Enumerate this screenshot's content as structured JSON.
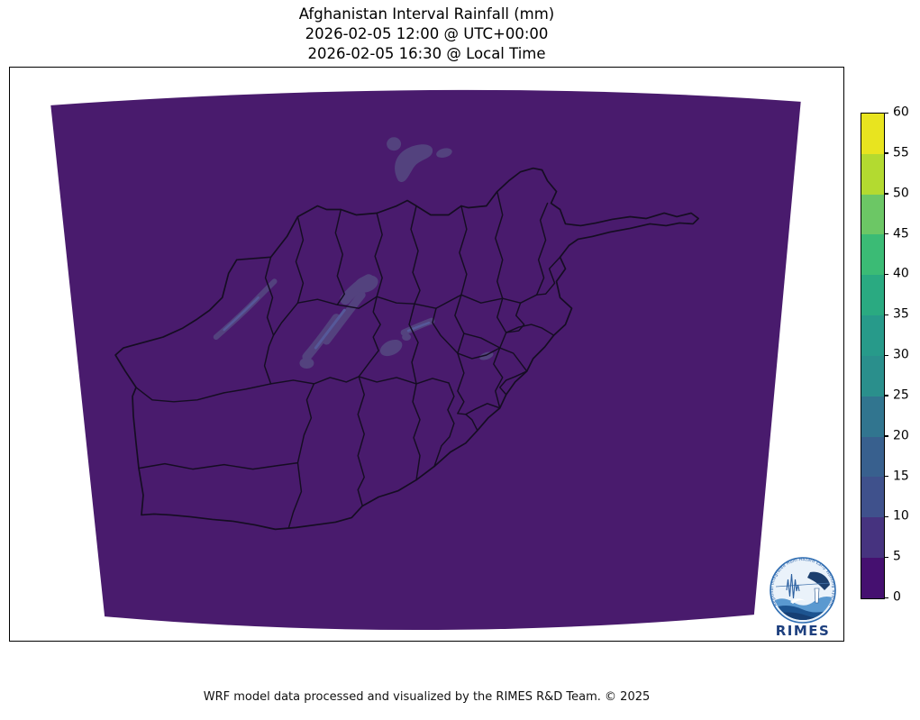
{
  "figure": {
    "title_lines": [
      "Afghanistan Interval Rainfall (mm)",
      "2026-02-05 12:00 @ UTC+00:00",
      "2026-02-05 16:30 @ Local Time"
    ],
    "caption": "WRF model data processed and visualized by the RIMES R&D Team. © 2025"
  },
  "logo": {
    "wordmark": "RIMES",
    "ring_text": "Regional Integrated Multi-Hazard Early Warning System"
  },
  "chart_data": {
    "type": "heatmap",
    "title": "Afghanistan Interval Rainfall (mm)",
    "timestamp_utc": "2026-02-05 12:00 @ UTC+00:00",
    "timestamp_local": "2026-02-05 16:30 @ Local Time",
    "units": "mm",
    "region": "Afghanistan with province boundaries (Lambert conformal fan-shaped model domain)",
    "colorbar": {
      "orientation": "vertical",
      "levels": [
        0,
        5,
        10,
        15,
        20,
        25,
        30,
        35,
        40,
        45,
        50,
        55,
        60
      ],
      "tick_labels": [
        "0",
        "5",
        "10",
        "15",
        "20",
        "25",
        "30",
        "35",
        "40",
        "45",
        "50",
        "55",
        "60"
      ],
      "band_colors": [
        "#451070",
        "#46337f",
        "#3f518c",
        "#38608e",
        "#31758f",
        "#2a8f8c",
        "#279a8a",
        "#2aaa81",
        "#3bbb75",
        "#6cc765",
        "#b3da30",
        "#e8e41f"
      ]
    },
    "field_summary": {
      "dominant_value_band_mm": "0-5",
      "light_patch_value_band_mm": "5-15",
      "patch_locations": [
        "small blobs north-central (upper domain)",
        "thin diagonal streak in the west",
        "larger diagonal streak cluster in the center",
        "small streaks and blobs east of center"
      ]
    },
    "colors": {
      "map_fill": "#491b6d",
      "rain_patch": "#53427e",
      "rain_patch_bright": "#565899",
      "boundary_line": "#150d22",
      "frame": "#000000",
      "background": "#ffffff"
    }
  }
}
